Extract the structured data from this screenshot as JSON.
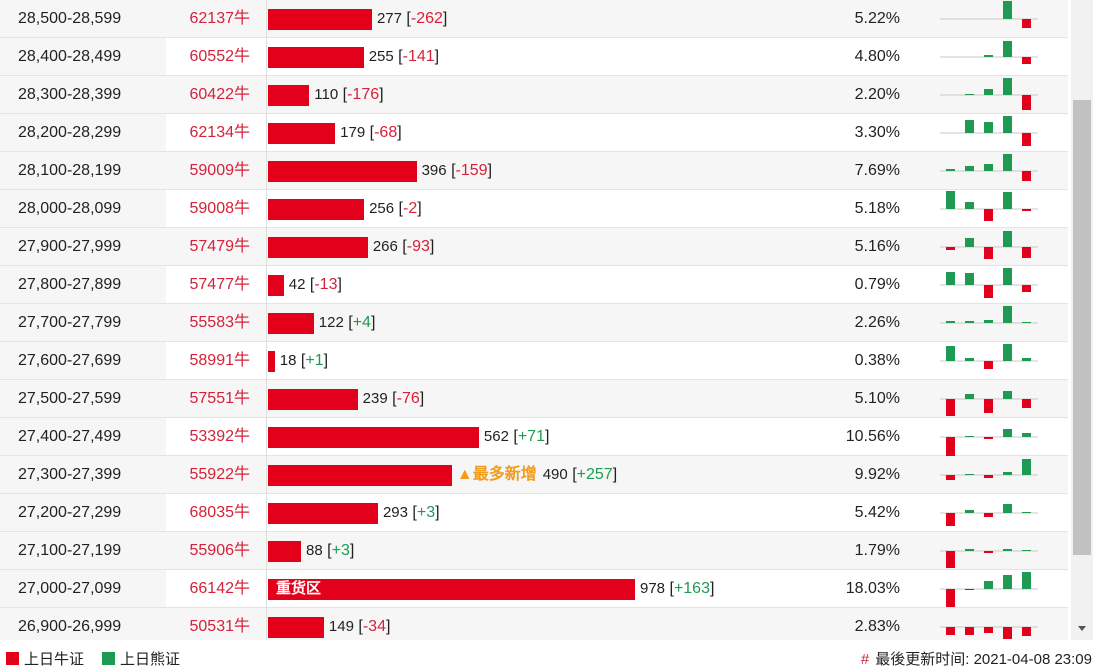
{
  "rows": [
    {
      "range": "28,500-28,599",
      "code": "62137牛",
      "volume": 277,
      "change": "-262",
      "percent": "5.22%",
      "trend": [
        0,
        0,
        0,
        18,
        -9
      ]
    },
    {
      "range": "28,400-28,499",
      "code": "60552牛",
      "volume": 255,
      "change": "-141",
      "percent": "4.80%",
      "trend": [
        0,
        0,
        2,
        16,
        -7
      ]
    },
    {
      "range": "28,300-28,399",
      "code": "60422牛",
      "volume": 110,
      "change": "-176",
      "percent": "2.20%",
      "trend": [
        0,
        1,
        6,
        17,
        -15
      ]
    },
    {
      "range": "28,200-28,299",
      "code": "62134牛",
      "volume": 179,
      "change": "-68",
      "percent": "3.30%",
      "trend": [
        0,
        13,
        11,
        17,
        -13
      ]
    },
    {
      "range": "28,100-28,199",
      "code": "59009牛",
      "volume": 396,
      "change": "-159",
      "percent": "7.69%",
      "trend": [
        2,
        5,
        7,
        17,
        -10
      ]
    },
    {
      "range": "28,000-28,099",
      "code": "59008牛",
      "volume": 256,
      "change": "-2",
      "percent": "5.18%",
      "trend": [
        18,
        7,
        -12,
        17,
        -2
      ]
    },
    {
      "range": "27,900-27,999",
      "code": "57479牛",
      "volume": 266,
      "change": "-93",
      "percent": "5.16%",
      "trend": [
        -3,
        9,
        -12,
        16,
        -11
      ]
    },
    {
      "range": "27,800-27,899",
      "code": "57477牛",
      "volume": 42,
      "change": "-13",
      "percent": "0.79%",
      "trend": [
        13,
        12,
        -13,
        17,
        -7
      ]
    },
    {
      "range": "27,700-27,799",
      "code": "55583牛",
      "volume": 122,
      "change": "+4",
      "percent": "2.26%",
      "trend": [
        2,
        2,
        3,
        17,
        1
      ]
    },
    {
      "range": "27,600-27,699",
      "code": "58991牛",
      "volume": 18,
      "change": "+1",
      "percent": "0.38%",
      "trend": [
        15,
        3,
        -8,
        17,
        3
      ]
    },
    {
      "range": "27,500-27,599",
      "code": "57551牛",
      "volume": 239,
      "change": "-76",
      "percent": "5.10%",
      "trend": [
        -17,
        5,
        -14,
        8,
        -9
      ]
    },
    {
      "range": "27,400-27,499",
      "code": "53392牛",
      "volume": 562,
      "change": "+71",
      "percent": "10.56%",
      "trend": [
        -22,
        1,
        -2,
        8,
        4
      ]
    },
    {
      "range": "27,300-27,399",
      "code": "55922牛",
      "volume": 490,
      "change": "+257",
      "percent": "9.92%",
      "note": "▲最多新增",
      "trend": [
        -5,
        1,
        -3,
        3,
        16
      ]
    },
    {
      "range": "27,200-27,299",
      "code": "68035牛",
      "volume": 293,
      "change": "+3",
      "percent": "5.42%",
      "trend": [
        -13,
        3,
        -4,
        9,
        1
      ]
    },
    {
      "range": "27,100-27,199",
      "code": "55906牛",
      "volume": 88,
      "change": "+3",
      "percent": "1.79%",
      "trend": [
        -17,
        2,
        -2,
        2,
        1
      ]
    },
    {
      "range": "27,000-27,099",
      "code": "66142牛",
      "volume": 978,
      "change": "+163",
      "percent": "18.03%",
      "bar_label": "重货区",
      "trend": [
        -18,
        -1,
        8,
        14,
        17
      ]
    },
    {
      "range": "26,900-26,999",
      "code": "50531牛",
      "volume": 149,
      "change": "-34",
      "percent": "2.83%",
      "trend": [
        -8,
        -8,
        -6,
        -12,
        -9
      ]
    }
  ],
  "legend": [
    {
      "label": "上日牛证",
      "color": "#e3001b"
    },
    {
      "label": "上日熊证",
      "color": "#1e9a53"
    }
  ],
  "updated": {
    "marker": "#",
    "label": "最後更新时间:",
    "time": "2021-04-08 23:09"
  }
}
